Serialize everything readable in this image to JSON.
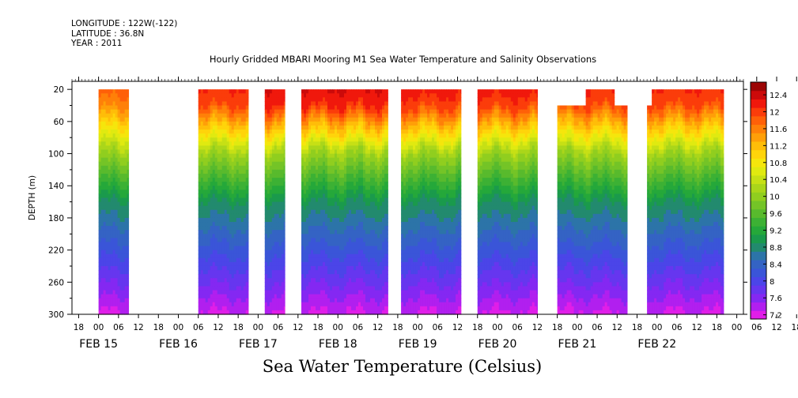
{
  "header": {
    "longitude": "LONGITUDE : 122W(-122)",
    "latitude": "LATITUDE : 36.8N",
    "year": "YEAR : 2011"
  },
  "title": "Hourly Gridded MBARI Mooring M1 Sea Water Temperature and Salinity Observations",
  "bottom_title": "Sea Water Temperature (Celsius)",
  "chart_data": {
    "type": "heatmap",
    "title": "Hourly Gridded MBARI Mooring M1 Sea Water Temperature and Salinity Observations",
    "ylabel": "DEPTH (m)",
    "xlabel": "",
    "ylim": [
      300,
      20
    ],
    "yticks": [
      20,
      60,
      100,
      140,
      180,
      220,
      260,
      300
    ],
    "x_hour_ticks": [
      "18",
      "00",
      "06",
      "12",
      "18",
      "00",
      "06",
      "12",
      "18",
      "00",
      "06",
      "12",
      "18",
      "00",
      "06",
      "12",
      "18",
      "00",
      "06",
      "12",
      "18",
      "00",
      "06",
      "12",
      "18",
      "00",
      "06",
      "12",
      "18",
      "00",
      "06",
      "12",
      "18",
      "00",
      "06",
      "12",
      "18"
    ],
    "x_hour_start": -6,
    "x_date_labels": [
      {
        "label": "FEB 15",
        "day": 0
      },
      {
        "label": "FEB 16",
        "day": 1
      },
      {
        "label": "FEB 17",
        "day": 2
      },
      {
        "label": "FEB 18",
        "day": 3
      },
      {
        "label": "FEB 19",
        "day": 4
      },
      {
        "label": "FEB 20",
        "day": 5
      },
      {
        "label": "FEB 21",
        "day": 6
      },
      {
        "label": "FEB 22",
        "day": 7
      }
    ],
    "x_range_hours": [
      -8,
      194
    ],
    "colorbar": {
      "levels": [
        7.2,
        7.4,
        7.6,
        7.8,
        8,
        8.2,
        8.4,
        8.6,
        8.8,
        9,
        9.2,
        9.4,
        9.6,
        9.8,
        10,
        10.2,
        10.4,
        10.6,
        10.8,
        11,
        11.2,
        11.4,
        11.6,
        11.8,
        12,
        12.2,
        12.4,
        12.6
      ],
      "labels": [
        "12.4",
        "12",
        "11.6",
        "11.2",
        "10.8",
        "10.4",
        "10",
        "9.6",
        "9.2",
        "8.8",
        "8.4",
        "8",
        "7.6",
        "7.2"
      ],
      "colors": [
        "#e01ee8",
        "#b11fef",
        "#8428f2",
        "#6636ef",
        "#4b45e8",
        "#3a55d8",
        "#3463c4",
        "#2c74a8",
        "#228a6e",
        "#1a9a4c",
        "#25a83a",
        "#3cb134",
        "#58ba2d",
        "#74c427",
        "#90ce1f",
        "#aad61a",
        "#c6e015",
        "#e0ea10",
        "#f5e60c",
        "#ffd40a",
        "#ffbd08",
        "#ff9f08",
        "#ff8008",
        "#ff6008",
        "#fb3c0a",
        "#f0180c",
        "#cc0a0a",
        "#9c0505"
      ]
    },
    "segments": [
      {
        "start_hour": 0,
        "end_hour": 9,
        "surface_temp": 11.9,
        "top_depth": 20,
        "pattern": "warm_top_short"
      },
      {
        "start_hour": 30,
        "end_hour": 45,
        "surface_temp": 12.2,
        "top_depth": 20
      },
      {
        "start_hour": 50,
        "end_hour": 56,
        "surface_temp": 12.4,
        "top_depth": 20
      },
      {
        "start_hour": 61,
        "end_hour": 87,
        "surface_temp": 12.4,
        "top_depth": 20
      },
      {
        "start_hour": 91,
        "end_hour": 109,
        "surface_temp": 12.3,
        "top_depth": 20
      },
      {
        "start_hour": 114,
        "end_hour": 132,
        "surface_temp": 12.3,
        "top_depth": 20
      },
      {
        "start_hour": 138,
        "end_hour": 159,
        "surface_temp": 12.2,
        "top_depth": 40,
        "notch": {
          "start_hour": 146,
          "end_hour": 155,
          "top_depth": 20
        }
      },
      {
        "start_hour": 165,
        "end_hour": 188,
        "surface_temp": 12.2,
        "top_depth": 20,
        "step": {
          "start_hour": 165,
          "end_hour": 166,
          "top_depth": 40
        }
      }
    ]
  }
}
